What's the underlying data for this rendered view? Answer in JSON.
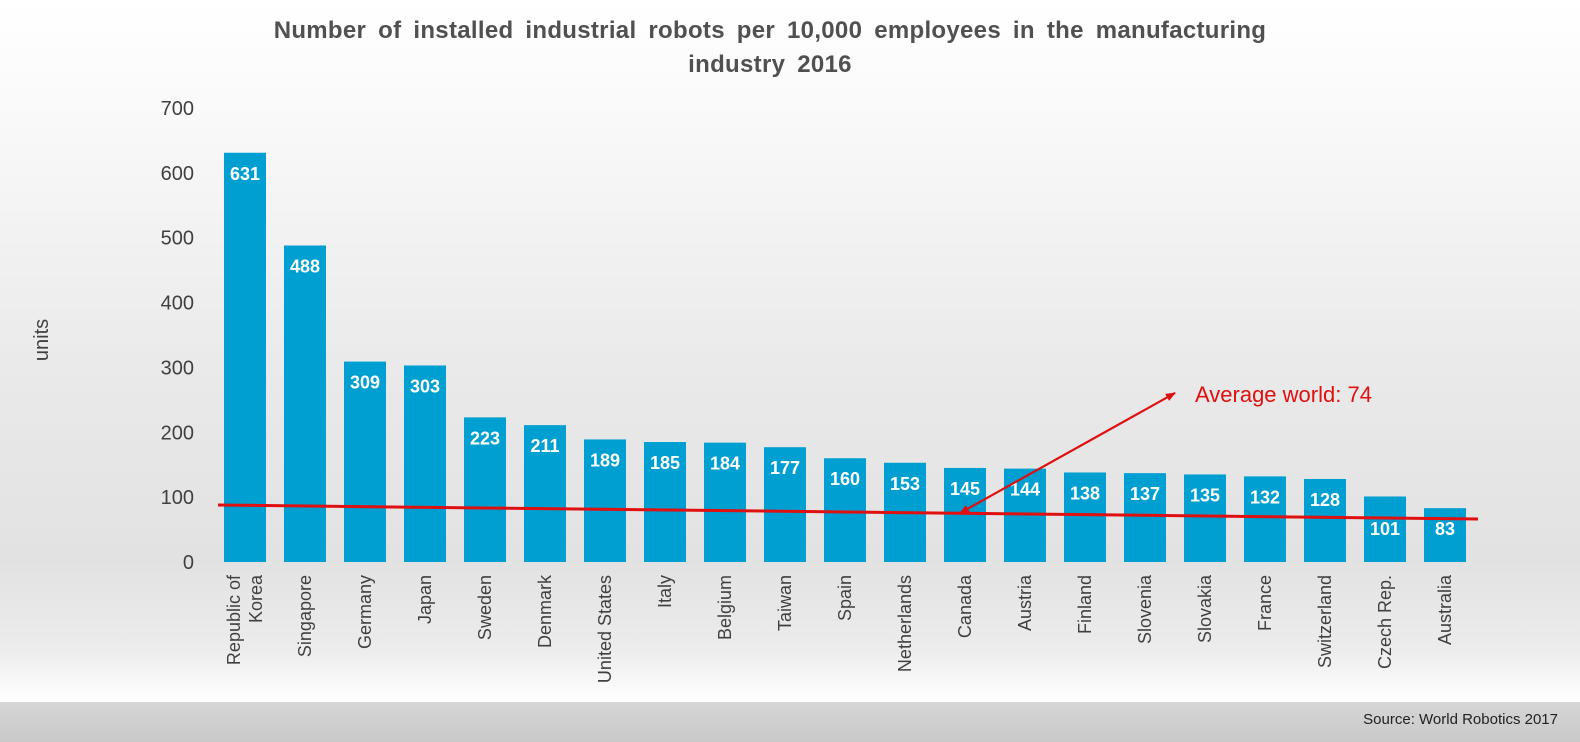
{
  "chart_data": {
    "type": "bar",
    "title": "Number of installed industrial robots per 10,000 employees in the manufacturing\nindustry 2016",
    "ylabel": "units",
    "xlabel": "",
    "ylim": [
      0,
      700
    ],
    "yticks": [
      0,
      100,
      200,
      300,
      400,
      500,
      600,
      700
    ],
    "categories": [
      "Republic of\nKorea",
      "Singapore",
      "Germany",
      "Japan",
      "Sweden",
      "Denmark",
      "United States",
      "Italy",
      "Belgium",
      "Taiwan",
      "Spain",
      "Netherlands",
      "Canada",
      "Austria",
      "Finland",
      "Slovenia",
      "Slovakia",
      "France",
      "Switzerland",
      "Czech Rep.",
      "Australia"
    ],
    "values": [
      631,
      488,
      309,
      303,
      223,
      211,
      189,
      185,
      184,
      177,
      160,
      153,
      145,
      144,
      138,
      137,
      135,
      132,
      128,
      101,
      83
    ],
    "bar_color": "#009fd1",
    "grid": false,
    "reference_line": {
      "label": "Average world: 74",
      "value": 74,
      "color": "#e01010"
    },
    "source": "Source: World Robotics 2017"
  }
}
